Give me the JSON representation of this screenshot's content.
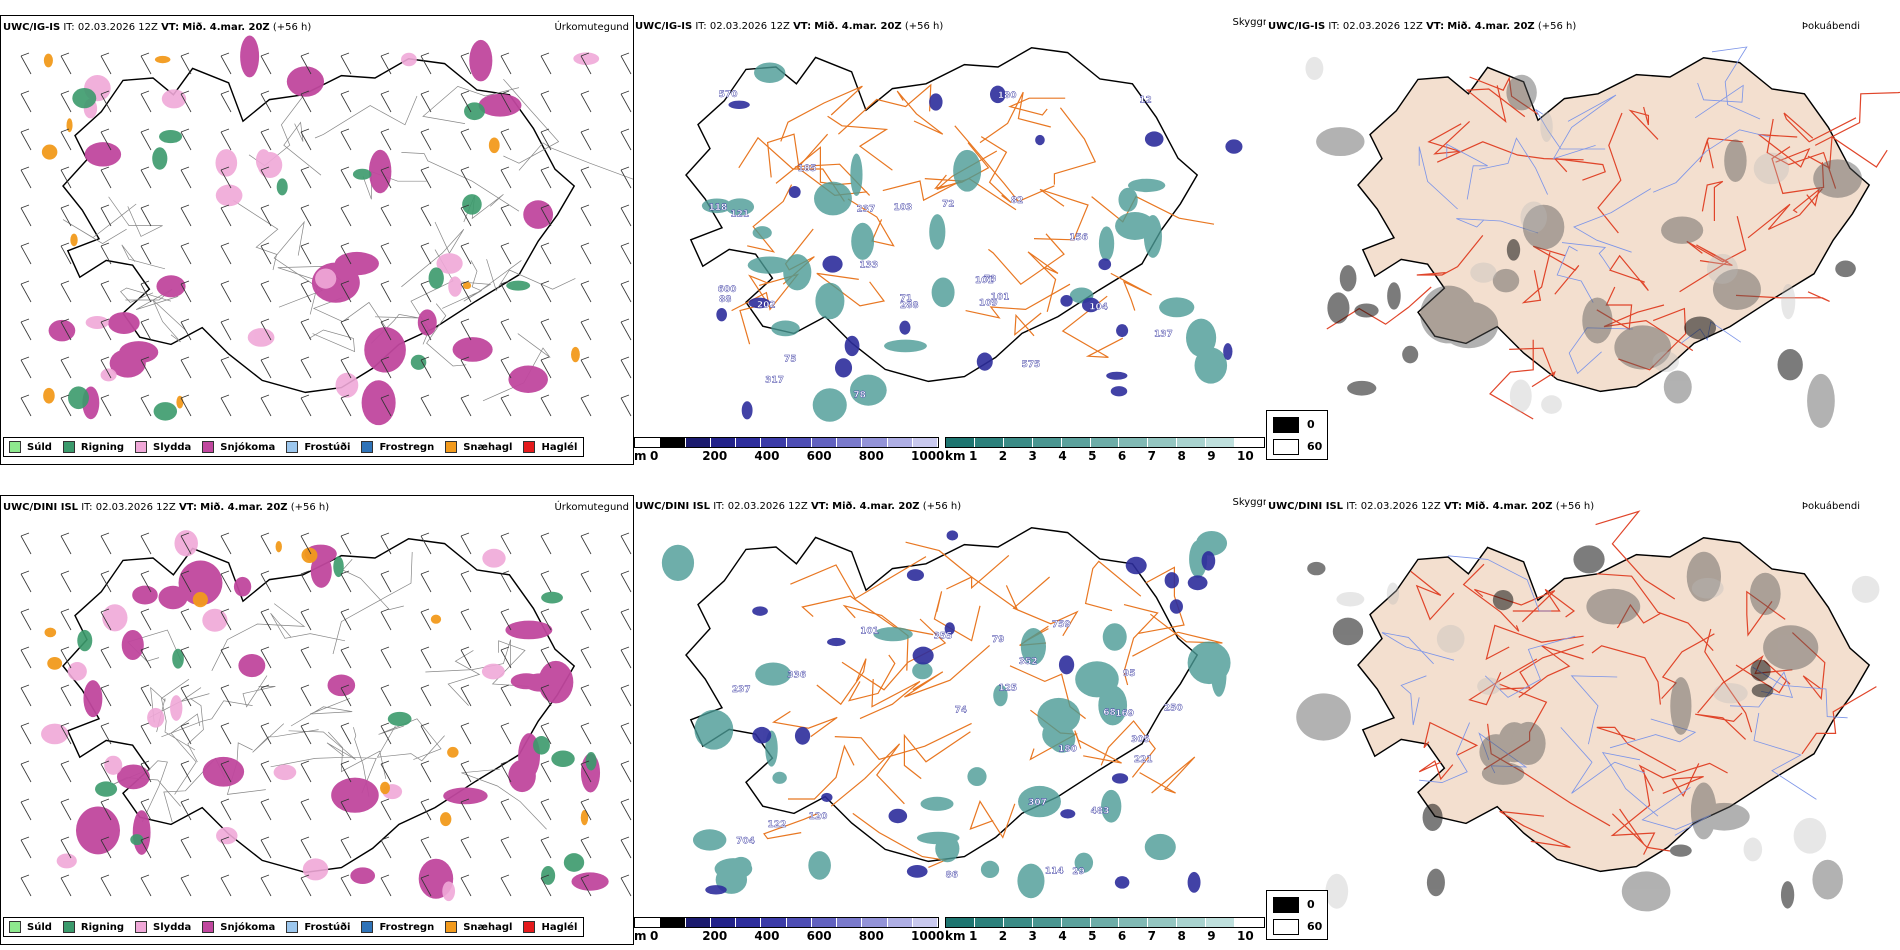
{
  "rows": [
    {
      "model": "UWC/IG-IS",
      "it_label": "IT:",
      "it_value": "02.03.2026 12Z",
      "vt_label": "VT:",
      "vt_value": "Mið. 4.mar. 20Z",
      "lead": "(+56 h)"
    },
    {
      "model": "UWC/DINI ISL",
      "it_label": "IT:",
      "it_value": "02.03.2026 12Z",
      "vt_label": "VT:",
      "vt_value": "Mið. 4.mar. 20Z",
      "lead": "(+56 h)"
    }
  ],
  "panel_titles": {
    "precip_type": "Úrkomutegund",
    "visibility": "Skyggni",
    "fog": "Þokuábendi"
  },
  "precip_legend": [
    {
      "label": "Súld",
      "color": "#8ee88e"
    },
    {
      "label": "Rigning",
      "color": "#3b9a6c"
    },
    {
      "label": "Slydda",
      "color": "#f0a8d8"
    },
    {
      "label": "Snjókoma",
      "color": "#c0479e"
    },
    {
      "label": "Frostúði",
      "color": "#9cc7ee"
    },
    {
      "label": "Frostregn",
      "color": "#2f73b8"
    },
    {
      "label": "Snæhagl",
      "color": "#f29a1c"
    },
    {
      "label": "Haglél",
      "color": "#e41a1c"
    }
  ],
  "ceiling_bar": {
    "unit": "m",
    "ticks": [
      "0",
      "200",
      "400",
      "600",
      "800",
      "1000"
    ],
    "colors": [
      "#ffffff",
      "#000000",
      "#1a1a6e",
      "#22228a",
      "#2d2d9c",
      "#3b3ba8",
      "#4d4db4",
      "#6262c0",
      "#7a7acc",
      "#9393d8",
      "#aeaee4",
      "#c9c9ee"
    ]
  },
  "visibility_bar": {
    "unit": "km",
    "ticks": [
      "1",
      "2",
      "3",
      "4",
      "5",
      "6",
      "7",
      "8",
      "9",
      "10"
    ],
    "colors": [
      "#1d7570",
      "#2b807b",
      "#3a8b86",
      "#4a9691",
      "#5ba19c",
      "#6dada8",
      "#80b9b4",
      "#94c6c1",
      "#a9d3cf",
      "#bfe0dd",
      "#ffffff"
    ]
  },
  "fog_legend": [
    {
      "label": "0",
      "color": "#000000"
    },
    {
      "label": "60",
      "color": "#ffffff"
    }
  ],
  "height_labels_top": [
    "101",
    "121",
    "12",
    "109",
    "133",
    "103",
    "156",
    "73",
    "237",
    "72",
    "75",
    "118",
    "202",
    "71",
    "104",
    "137",
    "82",
    "88",
    "78",
    "105",
    "600",
    "101",
    "288",
    "317",
    "570",
    "180",
    "575"
  ],
  "height_labels_bottom": [
    "114",
    "120",
    "237",
    "125",
    "221",
    "101",
    "336",
    "307",
    "483",
    "759",
    "305",
    "68",
    "79",
    "95",
    "180",
    "122",
    "250",
    "169",
    "352",
    "355",
    "74",
    "86",
    "29",
    "704"
  ],
  "colors": {
    "snow": "#c0479e",
    "sleet": "#f0a8d8",
    "rain": "#3b9a6c",
    "snowgrain": "#f29a1c",
    "vis_teal": "#4a9a95",
    "cloud_blue": "#2d2d9c",
    "land_fill": "#f3dfcf",
    "road_orange": "#e87722",
    "road_red": "#e0452a",
    "river_blue": "#7d95e8",
    "coast": "#000000"
  }
}
